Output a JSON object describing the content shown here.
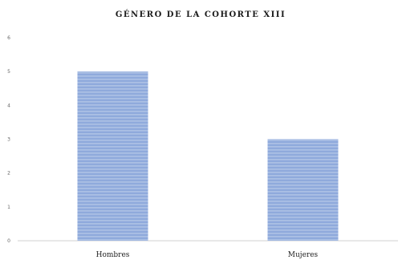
{
  "chart_data": {
    "type": "bar",
    "title": "GÉNERO DE LA COHORTE XIII",
    "xlabel": "",
    "ylabel": "",
    "categories": [
      "Hombres",
      "Mujeres"
    ],
    "values": [
      5,
      3
    ],
    "ylim": [
      0,
      6
    ],
    "yticks": [
      "0",
      "1",
      "2",
      "3",
      "4",
      "5",
      "6"
    ],
    "grid": false,
    "legend": "none",
    "bar_color": "#8faadc",
    "stripe_color": "#b4c7e7"
  }
}
